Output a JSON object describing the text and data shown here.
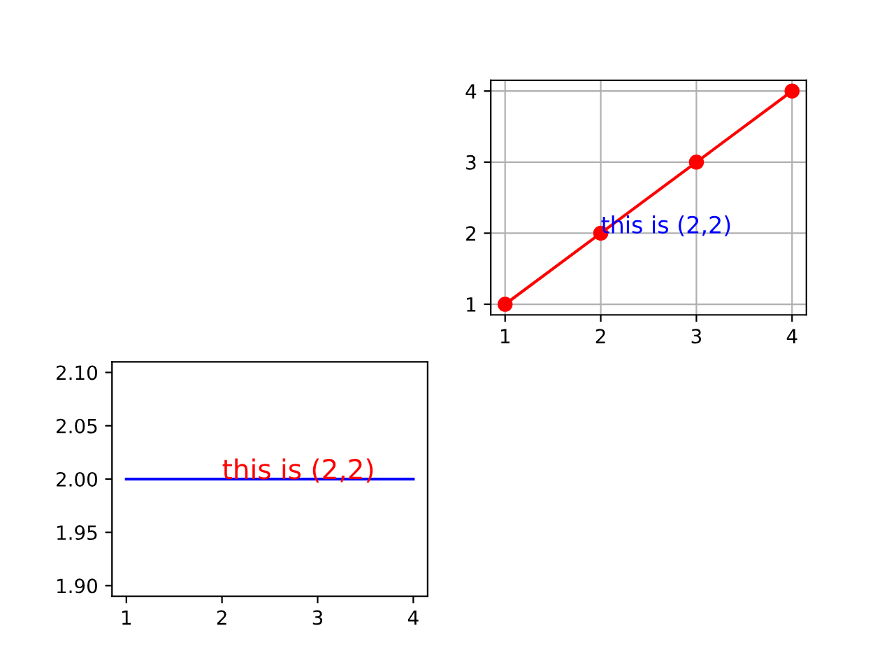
{
  "chart_data": [
    {
      "type": "line",
      "x": [
        1,
        2,
        3,
        4
      ],
      "series": [
        {
          "color": "#ff0000",
          "values": [
            1,
            2,
            3,
            4
          ]
        }
      ],
      "marker": "circle",
      "grid": true,
      "xlim": [
        0.85,
        4.15
      ],
      "ylim": [
        0.85,
        4.15
      ],
      "xticks": [
        1,
        2,
        3,
        4
      ],
      "yticks": [
        1,
        2,
        3,
        4
      ],
      "annotations": [
        {
          "text": "this is (2,2)",
          "x": 2,
          "y": 2
        }
      ]
    },
    {
      "type": "line",
      "x": [
        1,
        2,
        3,
        4
      ],
      "series": [
        {
          "color": "#0000ff",
          "values": [
            2,
            2,
            2,
            2
          ]
        }
      ],
      "xlim": [
        0.85,
        4.15
      ],
      "ylim": [
        1.89,
        2.11
      ],
      "xticks": [
        1,
        2,
        3,
        4
      ],
      "yticks": [
        {
          "value": 1.9,
          "label": "1.90"
        },
        {
          "value": 1.95,
          "label": "1.95"
        },
        {
          "value": 2.0,
          "label": "2.00"
        },
        {
          "value": 2.05,
          "label": "2.05"
        },
        {
          "value": 2.1,
          "label": "2.10"
        }
      ],
      "annotations": [
        {
          "text": "this is (2,2)",
          "x": 2,
          "y": 2
        }
      ]
    }
  ]
}
